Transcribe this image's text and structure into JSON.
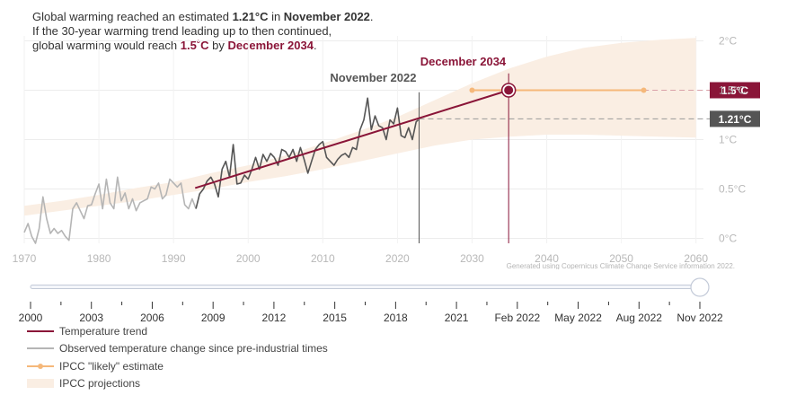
{
  "headline": {
    "line1": {
      "pre": "Global warming reached an estimated ",
      "value": "1.21°C",
      "mid": " in ",
      "date": "November 2022",
      "post": "."
    },
    "line2": "If the 30-year warming trend leading up to then continued,",
    "line3": {
      "pre": "global warming would reach ",
      "value": "1.5˚C",
      "mid": " by ",
      "date": "December 2034",
      "post": "."
    }
  },
  "chart_data": {
    "type": "line",
    "xlim": [
      1970,
      2061
    ],
    "ylim": [
      -0.05,
      2.05
    ],
    "x_ticks": [
      1970,
      1980,
      1990,
      2000,
      2010,
      2020,
      2030,
      2040,
      2050,
      2060
    ],
    "y_ticks": [
      {
        "value": 0,
        "label": "0°C"
      },
      {
        "value": 0.5,
        "label": "0.5°C"
      },
      {
        "value": 1,
        "label": "1°C"
      },
      {
        "value": 1.5,
        "label": "1.5°C"
      },
      {
        "value": 2,
        "label": "2°C"
      }
    ],
    "grid": true,
    "series": [
      {
        "name": "Observed temperature change since pre-industrial times",
        "color": "#b5b5b5",
        "highlight_color": "#555555",
        "highlight_from": 1992.9,
        "x": [
          1970.0,
          1970.5,
          1971.0,
          1971.5,
          1972.0,
          1972.5,
          1973.0,
          1973.5,
          1974.0,
          1974.5,
          1975.0,
          1975.5,
          1976.0,
          1976.5,
          1977.0,
          1977.5,
          1978.0,
          1978.5,
          1979.0,
          1979.5,
          1980.0,
          1980.5,
          1981.0,
          1981.5,
          1982.0,
          1982.5,
          1983.0,
          1983.5,
          1984.0,
          1984.5,
          1985.0,
          1985.5,
          1986.0,
          1986.5,
          1987.0,
          1987.5,
          1988.0,
          1988.5,
          1989.0,
          1989.5,
          1990.0,
          1990.5,
          1991.0,
          1991.5,
          1992.0,
          1992.5,
          1993.0,
          1993.5,
          1994.0,
          1994.5,
          1995.0,
          1995.5,
          1996.0,
          1996.5,
          1997.0,
          1997.5,
          1998.0,
          1998.5,
          1999.0,
          1999.5,
          2000.0,
          2000.5,
          2001.0,
          2001.5,
          2002.0,
          2002.5,
          2003.0,
          2003.5,
          2004.0,
          2004.5,
          2005.0,
          2005.5,
          2006.0,
          2006.5,
          2007.0,
          2007.5,
          2008.0,
          2008.5,
          2009.0,
          2009.5,
          2010.0,
          2010.5,
          2011.0,
          2011.5,
          2012.0,
          2012.5,
          2013.0,
          2013.5,
          2014.0,
          2014.5,
          2015.0,
          2015.5,
          2016.0,
          2016.5,
          2017.0,
          2017.5,
          2018.0,
          2018.5,
          2019.0,
          2019.5,
          2020.0,
          2020.5,
          2021.0,
          2021.5,
          2022.0,
          2022.5,
          2022.8
        ],
        "y": [
          0.06,
          0.15,
          0.02,
          -0.05,
          0.1,
          0.42,
          0.2,
          0.05,
          0.1,
          0.05,
          0.08,
          0.02,
          -0.02,
          0.3,
          0.36,
          0.28,
          0.2,
          0.33,
          0.34,
          0.45,
          0.55,
          0.3,
          0.6,
          0.36,
          0.3,
          0.62,
          0.38,
          0.46,
          0.3,
          0.4,
          0.28,
          0.36,
          0.38,
          0.4,
          0.52,
          0.5,
          0.56,
          0.4,
          0.44,
          0.6,
          0.56,
          0.52,
          0.56,
          0.34,
          0.3,
          0.4,
          0.3,
          0.45,
          0.5,
          0.58,
          0.62,
          0.55,
          0.42,
          0.7,
          0.78,
          0.62,
          0.95,
          0.55,
          0.56,
          0.64,
          0.6,
          0.7,
          0.82,
          0.7,
          0.85,
          0.78,
          0.86,
          0.82,
          0.74,
          0.9,
          0.88,
          0.82,
          0.9,
          0.78,
          0.92,
          0.8,
          0.66,
          0.78,
          0.9,
          0.95,
          0.98,
          0.82,
          0.78,
          0.74,
          0.8,
          0.84,
          0.86,
          0.82,
          0.92,
          0.9,
          1.1,
          1.2,
          1.42,
          1.1,
          1.24,
          1.14,
          1.12,
          1.0,
          1.2,
          1.16,
          1.32,
          1.04,
          1.02,
          1.12,
          1.0,
          1.18,
          1.2
        ]
      },
      {
        "name": "Temperature trend",
        "color": "#8a1538",
        "x": [
          1992.9,
          2034.9
        ],
        "y": [
          0.51,
          1.5
        ]
      },
      {
        "name": "IPCC \"likely\" estimate",
        "color": "#f5b87a",
        "x": [
          2030,
          2053
        ],
        "y": [
          1.5,
          1.5
        ]
      },
      {
        "name": "IPCC projections",
        "color": "#faeee3",
        "x": [
          1970,
          1975,
          1980,
          1985,
          1990,
          1995,
          2000,
          2005,
          2010,
          2015,
          2020,
          2025,
          2030,
          2035,
          2040,
          2045,
          2050,
          2055,
          2060
        ],
        "upper": [
          0.33,
          0.38,
          0.44,
          0.51,
          0.57,
          0.66,
          0.74,
          0.84,
          0.96,
          1.09,
          1.23,
          1.4,
          1.57,
          1.72,
          1.84,
          1.93,
          1.98,
          2.01,
          2.03
        ],
        "lower": [
          0.23,
          0.28,
          0.33,
          0.38,
          0.44,
          0.5,
          0.57,
          0.63,
          0.7,
          0.78,
          0.86,
          0.94,
          1.0,
          1.03,
          1.05,
          1.05,
          1.04,
          1.03,
          1.02
        ]
      }
    ],
    "annotations": {
      "current": {
        "label": "November 2022",
        "x": 2022.9,
        "y": 1.21,
        "badge": "1.21°C"
      },
      "crossing": {
        "label": "December 2034",
        "x": 2034.9,
        "y": 1.5,
        "badge": "1.5°C"
      }
    },
    "credit": "Generated using Copernicus Climate Change Service information 2022."
  },
  "timeline": {
    "labels": [
      "2000",
      "2003",
      "2006",
      "2009",
      "2012",
      "2015",
      "2018",
      "2021",
      "Feb 2022",
      "May 2022",
      "Aug 2022",
      "Nov 2022"
    ],
    "value_label": "Nov 2022",
    "position": 1.0
  },
  "legend": [
    {
      "label": "Temperature trend",
      "kind": "trend"
    },
    {
      "label": "Observed temperature change since pre-industrial times",
      "kind": "obs"
    },
    {
      "label": "IPCC \"likely\" estimate",
      "kind": "ipcc"
    },
    {
      "label": "IPCC projections",
      "kind": "proj"
    }
  ],
  "colors": {
    "accent": "#8a1538",
    "badge_current": "#555555",
    "band": "#faeee3",
    "ipcc": "#f5b87a",
    "observed": "#b5b5b5",
    "observed_recent": "#555555"
  }
}
